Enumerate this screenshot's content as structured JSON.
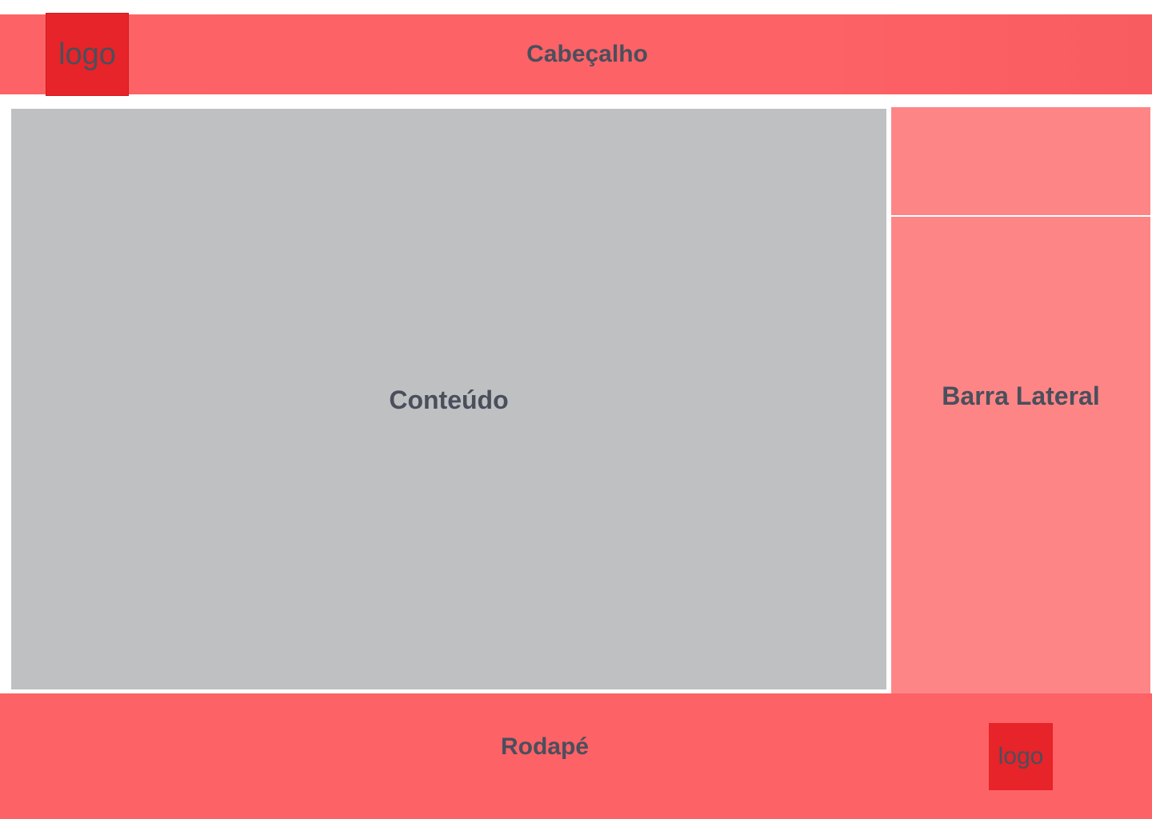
{
  "header": {
    "title": "Cabeçalho",
    "logo": "logo"
  },
  "content": {
    "title": "Conteúdo"
  },
  "sidebar": {
    "title": "Barra Lateral"
  },
  "footer": {
    "title": "Rodapé",
    "logo": "logo"
  },
  "colors": {
    "header_bg": "#fd6266",
    "logo_bg": "#e62429",
    "content_bg": "#bfc0c2",
    "sidebar_bg": "#fe8586",
    "footer_bg": "#fd6266",
    "text": "#4a4f5c"
  }
}
